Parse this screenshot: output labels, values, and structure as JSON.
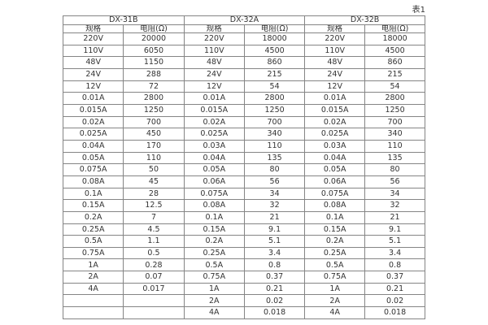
{
  "caption": "表1",
  "colors": {
    "background": "#ffffff",
    "border": "#858585",
    "text": "#333333"
  },
  "table": {
    "groups": [
      {
        "name": "DX-31B",
        "spec_header": "规格",
        "res_header": "电阻(Ω)"
      },
      {
        "name": "DX-32A",
        "spec_header": "规格",
        "res_header": "电阻(Ω)"
      },
      {
        "name": "DX-32B",
        "spec_header": "规格",
        "res_header": "电阻(Ω)"
      }
    ],
    "rows": [
      [
        "220V",
        "20000",
        "220V",
        "18000",
        "220V",
        "18000"
      ],
      [
        "110V",
        "6050",
        "110V",
        "4500",
        "110V",
        "4500"
      ],
      [
        "48V",
        "1150",
        "48V",
        "860",
        "48V",
        "860"
      ],
      [
        "24V",
        "288",
        "24V",
        "215",
        "24V",
        "215"
      ],
      [
        "12V",
        "72",
        "12V",
        "54",
        "12V",
        "54"
      ],
      [
        "0.01A",
        "2800",
        "0.01A",
        "2800",
        "0.01A",
        "2800"
      ],
      [
        "0.015A",
        "1250",
        "0.015A",
        "1250",
        "0.015A",
        "1250"
      ],
      [
        "0.02A",
        "700",
        "0.02A",
        "700",
        "0.02A",
        "700"
      ],
      [
        "0.025A",
        "450",
        "0.025A",
        "340",
        "0.025A",
        "340"
      ],
      [
        "0.04A",
        "170",
        "0.03A",
        "110",
        "0.03A",
        "110"
      ],
      [
        "0.05A",
        "110",
        "0.04A",
        "135",
        "0.04A",
        "135"
      ],
      [
        "0.075A",
        "50",
        "0.05A",
        "80",
        "0.05A",
        "80"
      ],
      [
        "0.08A",
        "45",
        "0.06A",
        "56",
        "0.06A",
        "56"
      ],
      [
        "0.1A",
        "28",
        "0.075A",
        "34",
        "0.075A",
        "34"
      ],
      [
        "0.15A",
        "12.5",
        "0.08A",
        "32",
        "0.08A",
        "32"
      ],
      [
        "0.2A",
        "7",
        "0.1A",
        "21",
        "0.1A",
        "21"
      ],
      [
        "0.25A",
        "4.5",
        "0.15A",
        "9.1",
        "0.15A",
        "9.1"
      ],
      [
        "0.5A",
        "1.1",
        "0.2A",
        "5.1",
        "0.2A",
        "5.1"
      ],
      [
        "0.75A",
        "0.5",
        "0.25A",
        "3.4",
        "0.25A",
        "3.4"
      ],
      [
        "1A",
        "0.28",
        "0.5A",
        "0.8",
        "0.5A",
        "0.8"
      ],
      [
        "2A",
        "0.07",
        "0.75A",
        "0.37",
        "0.75A",
        "0.37"
      ],
      [
        "4A",
        "0.017",
        "1A",
        "0.21",
        "1A",
        "0.21"
      ],
      [
        "",
        "",
        "2A",
        "0.02",
        "2A",
        "0.02"
      ],
      [
        "",
        "",
        "4A",
        "0.018",
        "4A",
        "0.018"
      ]
    ]
  }
}
